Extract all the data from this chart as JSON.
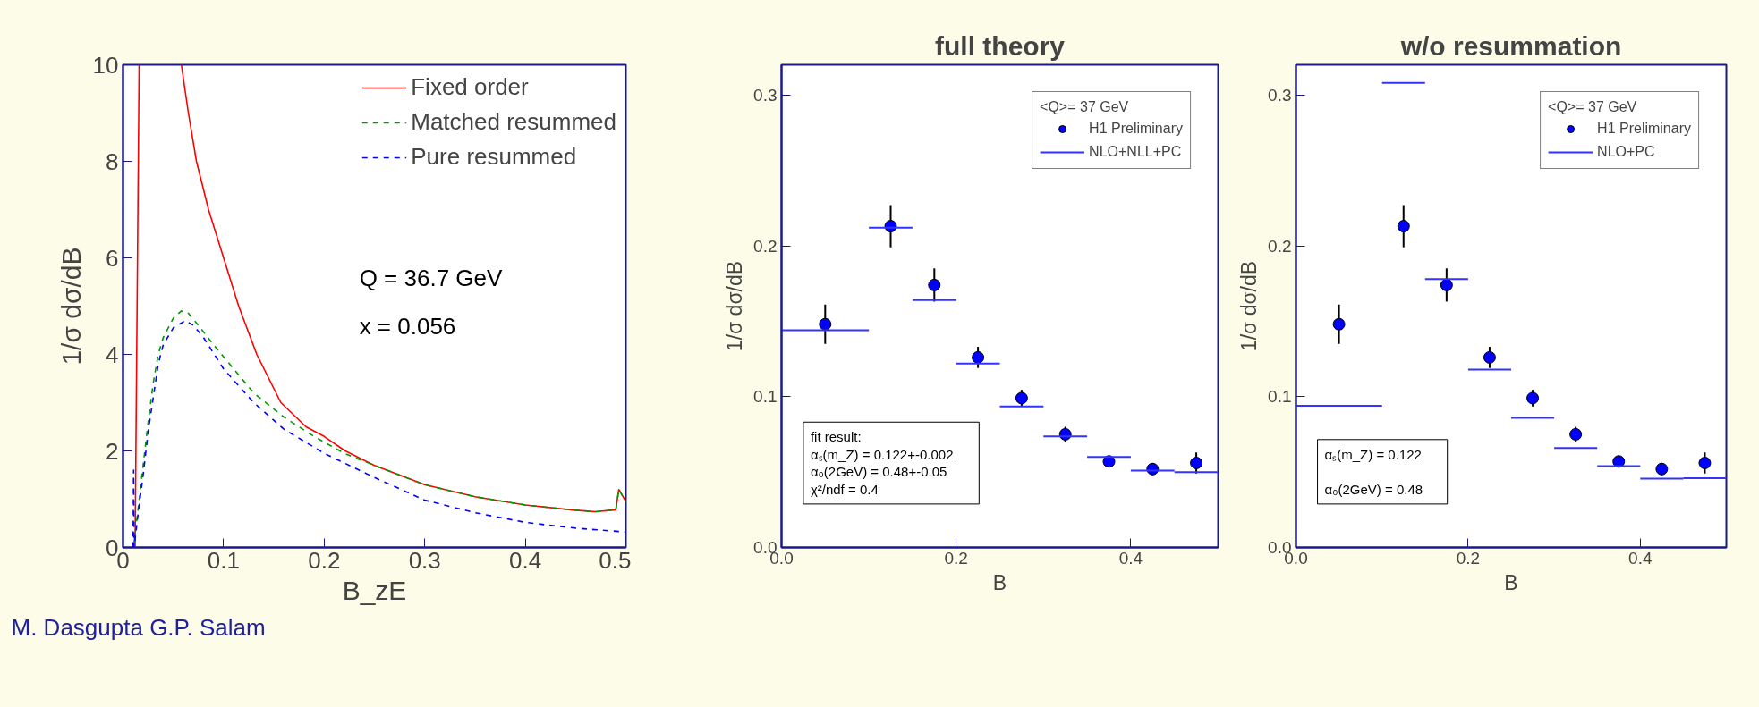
{
  "chart_data": [
    {
      "type": "line",
      "xlabel": "B_zE",
      "ylabel": "1/σ dσ/dB",
      "xlim": [
        0,
        0.5
      ],
      "ylim": [
        0,
        10
      ],
      "xticks": [
        0,
        0.1,
        0.2,
        0.3,
        0.4,
        0.5
      ],
      "yticks": [
        0,
        2,
        4,
        6,
        8,
        10
      ],
      "legend": "top right",
      "annotations": [
        "Q = 36.7 GeV",
        "x = 0.056",
        "M. Dasgupta G.P. Salam"
      ],
      "series": [
        {
          "name": "Fixed order",
          "color": "#ff0000",
          "line_style": "solid",
          "x": [
            0.012,
            0.014,
            0.016,
            0.03,
            0.058,
            0.065,
            0.073,
            0.085,
            0.1,
            0.115,
            0.133,
            0.157,
            0.182,
            0.2,
            0.221,
            0.25,
            0.3,
            0.35,
            0.4,
            0.45,
            0.47,
            0.49,
            0.493,
            0.5
          ],
          "values": [
            0,
            5,
            10,
            null,
            10,
            9,
            8,
            7,
            6,
            5,
            4,
            3,
            2.5,
            2.3,
            2.0,
            1.7,
            1.3,
            1.05,
            0.88,
            0.77,
            0.74,
            0.78,
            1.2,
            0.95
          ]
        },
        {
          "name": "Matched resummed",
          "color": "#009900",
          "line_style": "dashed",
          "x": [
            0.011,
            0.015,
            0.02,
            0.025,
            0.03,
            0.035,
            0.04,
            0.05,
            0.058,
            0.065,
            0.075,
            0.09,
            0.1,
            0.13,
            0.16,
            0.19,
            0.22,
            0.25,
            0.3,
            0.35,
            0.4,
            0.45,
            0.47,
            0.49,
            0.493,
            0.5
          ],
          "values": [
            0.1,
            0.8,
            1.7,
            2.6,
            3.4,
            4.0,
            4.35,
            4.75,
            4.9,
            4.85,
            4.6,
            4.2,
            3.95,
            3.2,
            2.7,
            2.3,
            1.95,
            1.7,
            1.3,
            1.05,
            0.88,
            0.77,
            0.74,
            0.78,
            1.2,
            0.95
          ]
        },
        {
          "name": "Pure resummed",
          "color": "#0000ff",
          "line_style": "dashed",
          "x": [
            0.01,
            0.0105,
            0.011,
            0.015,
            0.02,
            0.025,
            0.03,
            0.035,
            0.04,
            0.05,
            0.062,
            0.07,
            0.08,
            0.1,
            0.13,
            0.16,
            0.2,
            0.25,
            0.3,
            0.35,
            0.4,
            0.45,
            0.5
          ],
          "values": [
            0,
            1.6,
            0,
            0.7,
            1.5,
            2.4,
            3.1,
            3.8,
            4.2,
            4.55,
            4.7,
            4.6,
            4.35,
            3.7,
            3.0,
            2.45,
            1.95,
            1.45,
            0.98,
            0.72,
            0.52,
            0.4,
            0.32
          ]
        }
      ]
    },
    {
      "type": "scatter",
      "title": "full theory",
      "xlabel": "B",
      "ylabel": "1/σ dσ/dB",
      "xlim": [
        0,
        0.5
      ],
      "ylim": [
        0,
        0.32
      ],
      "xticks": [
        {
          "value": 0,
          "label": "0.0"
        },
        0.2,
        0.4
      ],
      "yticks": [
        {
          "value": 0,
          "label": "0.0"
        },
        0.1,
        0.2,
        0.3
      ],
      "legend": "top right",
      "legend_title": "<Q>= 37 GeV",
      "annotations": [
        "fit result:",
        "αₛ(m_Z)      = 0.122+-0.002",
        "α₀(2GeV) = 0.48+-0.05",
        "χ²/ndf      =  0.4"
      ],
      "series": [
        {
          "name": "H1 Preliminary",
          "type": "scatter",
          "marker": "circle",
          "color": "#0000ff",
          "x": [
            0.05,
            0.125,
            0.175,
            0.225,
            0.275,
            0.325,
            0.375,
            0.425,
            0.475
          ],
          "values": [
            0.148,
            0.213,
            0.174,
            0.126,
            0.099,
            0.075,
            0.057,
            0.052,
            0.056
          ],
          "errors": [
            0.013,
            0.014,
            0.011,
            0.007,
            0.0055,
            0.005,
            0.004,
            0.004,
            0.007
          ]
        },
        {
          "name": "NLO+NLL+PC",
          "type": "step",
          "color": "#3333ff",
          "x": [
            0,
            0.1,
            0.15,
            0.2,
            0.25,
            0.3,
            0.35,
            0.4,
            0.45,
            0.5
          ],
          "values": [
            0.144,
            0.212,
            0.164,
            0.122,
            0.0935,
            0.0737,
            0.06,
            0.051,
            0.05,
            0.05
          ]
        }
      ]
    },
    {
      "type": "scatter",
      "title": "w/o resummation",
      "xlabel": "B",
      "ylabel": "1/σ dσ/dB",
      "xlim": [
        0,
        0.5
      ],
      "ylim": [
        0,
        0.32
      ],
      "xticks": [
        {
          "value": 0,
          "label": "0.0"
        },
        0.2,
        0.4
      ],
      "yticks": [
        {
          "value": 0,
          "label": "0.0"
        },
        0.1,
        0.2,
        0.3
      ],
      "legend": "top right",
      "legend_title": "<Q>= 37 GeV",
      "annotations": [
        "αₛ(m_Z)      = 0.122",
        "α₀(2GeV) = 0.48"
      ],
      "series": [
        {
          "name": "H1 Preliminary",
          "type": "scatter",
          "marker": "circle",
          "color": "#0000ff",
          "x": [
            0.05,
            0.125,
            0.175,
            0.225,
            0.275,
            0.325,
            0.375,
            0.425,
            0.475
          ],
          "values": [
            0.148,
            0.213,
            0.174,
            0.126,
            0.099,
            0.075,
            0.057,
            0.052,
            0.056
          ],
          "errors": [
            0.013,
            0.014,
            0.011,
            0.007,
            0.0055,
            0.005,
            0.004,
            0.004,
            0.007
          ]
        },
        {
          "name": "NLO+PC",
          "type": "step",
          "color": "#3333ff",
          "x": [
            0,
            0.1,
            0.15,
            0.2,
            0.25,
            0.3,
            0.35,
            0.4,
            0.45,
            0.5
          ],
          "values": [
            0.094,
            0.308,
            0.178,
            0.118,
            0.086,
            0.066,
            0.054,
            0.0456,
            0.046,
            0.046
          ]
        }
      ]
    }
  ]
}
